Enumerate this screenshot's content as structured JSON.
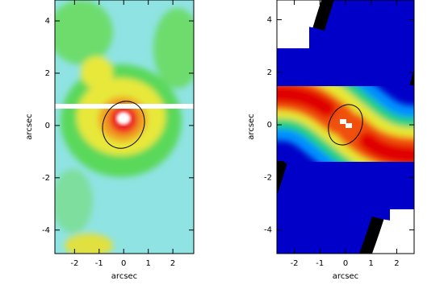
{
  "chart_data": [
    {
      "type": "image",
      "xlabel": "arcsec",
      "ylabel": "arcsec",
      "xlim": [
        -2.8,
        2.85
      ],
      "ylim": [
        -4.9,
        4.8
      ],
      "xticks": [
        -2,
        -1,
        0,
        1,
        2
      ],
      "yticks": [
        -4,
        -2,
        0,
        2,
        4
      ]
    },
    {
      "type": "image",
      "xlabel": "arcsec",
      "ylabel": "arcsec",
      "xlim": [
        -2.68,
        2.68
      ],
      "ylim": [
        -4.9,
        4.75
      ],
      "xticks": [
        -2,
        -1,
        0,
        1,
        2
      ],
      "yticks": [
        -4,
        -2,
        0,
        2,
        4
      ]
    }
  ]
}
